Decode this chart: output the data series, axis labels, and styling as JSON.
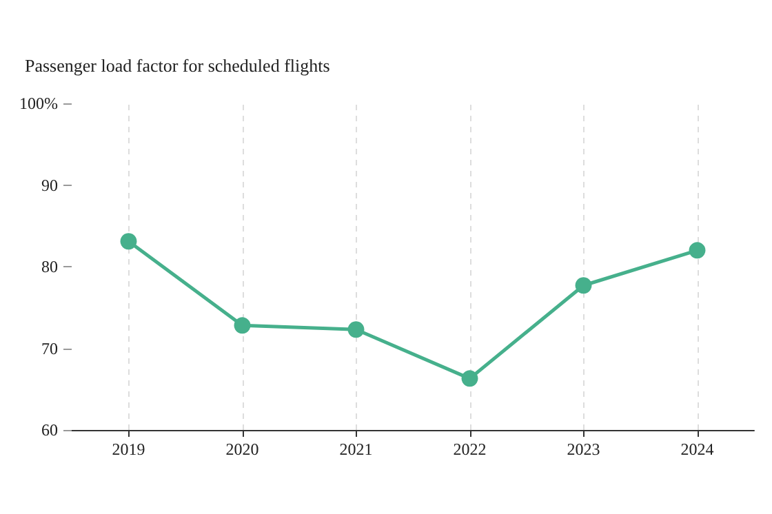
{
  "chart_data": {
    "type": "line",
    "title": "Passenger load factor for scheduled flights",
    "categories": [
      "2019",
      "2020",
      "2021",
      "2022",
      "2023",
      "2024"
    ],
    "series": [
      {
        "color": "#46b08c",
        "values": [
          83.1,
          72.8,
          72.3,
          66.3,
          77.7,
          82.0
        ]
      }
    ],
    "ylim": [
      60,
      100
    ],
    "yticks": [
      60,
      70,
      80,
      90,
      {
        "value": 100,
        "label": "100%"
      }
    ],
    "grid": "x",
    "marker": "circle",
    "line_style": "solid"
  }
}
